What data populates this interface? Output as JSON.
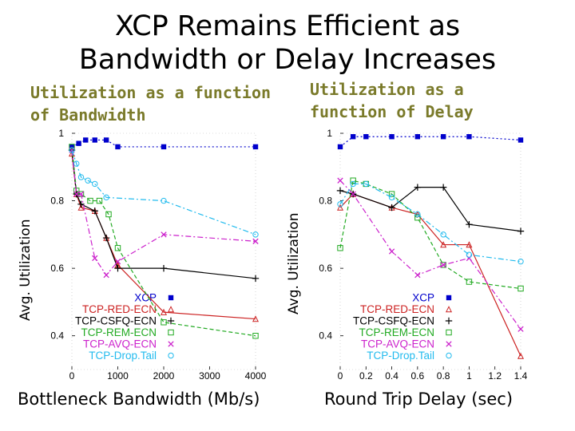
{
  "title_line1": "XCP Remains Efficient as",
  "title_line2": "Bandwidth or Delay Increases",
  "chart_data": [
    {
      "type": "line",
      "title": "Utilization as a function of Bandwidth",
      "xlabel": "Bottleneck Bandwidth (Mb/s)",
      "ylabel": "Avg. Utilization",
      "xlim": [
        0,
        4000
      ],
      "ylim": [
        0.3,
        1.0
      ],
      "xticks": [
        "0",
        "1000",
        "2000",
        "3000",
        "4000"
      ],
      "yticks": [
        "0.4",
        "0.6",
        "0.8",
        "1"
      ],
      "series": [
        {
          "name": "XCP",
          "color": "#0000cc",
          "marker": "square-filled",
          "style": "dotted",
          "x": [
            0,
            150,
            300,
            500,
            750,
            1000,
            2000,
            4000
          ],
          "y": [
            0.96,
            0.97,
            0.98,
            0.98,
            0.98,
            0.96,
            0.96,
            0.96
          ]
        },
        {
          "name": "TCP-RED-ECN",
          "color": "#cc2222",
          "marker": "triangle",
          "style": "solid",
          "x": [
            0,
            100,
            200,
            500,
            750,
            1000,
            2000,
            4000
          ],
          "y": [
            0.94,
            0.82,
            0.78,
            0.77,
            0.69,
            0.61,
            0.47,
            0.45
          ]
        },
        {
          "name": "TCP-CSFQ-ECN",
          "color": "#000000",
          "marker": "plus",
          "style": "solid",
          "x": [
            0,
            100,
            200,
            500,
            750,
            1000,
            2000,
            4000
          ],
          "y": [
            0.95,
            0.82,
            0.79,
            0.77,
            0.69,
            0.6,
            0.6,
            0.57
          ]
        },
        {
          "name": "TCP-REM-ECN",
          "color": "#22aa22",
          "marker": "square-open",
          "style": "dashed",
          "x": [
            0,
            100,
            200,
            400,
            600,
            800,
            1000,
            2000,
            4000
          ],
          "y": [
            0.96,
            0.83,
            0.82,
            0.8,
            0.8,
            0.76,
            0.66,
            0.44,
            0.4
          ]
        },
        {
          "name": "TCP-AVQ-ECN",
          "color": "#cc22cc",
          "marker": "cross",
          "style": "dashdot",
          "x": [
            0,
            100,
            200,
            500,
            750,
            1000,
            2000,
            4000
          ],
          "y": [
            0.95,
            0.82,
            0.82,
            0.63,
            0.58,
            0.62,
            0.7,
            0.68
          ]
        },
        {
          "name": "TCP-Drop.Tail",
          "color": "#22bbee",
          "marker": "circle",
          "style": "dashdot",
          "x": [
            0,
            100,
            200,
            350,
            500,
            750,
            2000,
            4000
          ],
          "y": [
            0.95,
            0.91,
            0.87,
            0.86,
            0.85,
            0.81,
            0.8,
            0.7
          ]
        }
      ]
    },
    {
      "type": "line",
      "title": "Utilization as a function of Delay",
      "xlabel": "Round Trip Delay (sec)",
      "ylabel": "Avg. Utilization",
      "xlim": [
        0,
        1.4
      ],
      "ylim": [
        0.3,
        1.0
      ],
      "xticks": [
        "0",
        "0.2",
        "0.4",
        "0.6",
        "0.8",
        "1",
        "1.2",
        "1.4"
      ],
      "yticks": [
        "0.4",
        "0.6",
        "0.8",
        "1"
      ],
      "series": [
        {
          "name": "XCP",
          "color": "#0000cc",
          "marker": "square-filled",
          "style": "dotted",
          "x": [
            0,
            0.1,
            0.2,
            0.4,
            0.6,
            0.8,
            1.0,
            1.4
          ],
          "y": [
            0.96,
            0.99,
            0.99,
            0.99,
            0.99,
            0.99,
            0.99,
            0.98
          ]
        },
        {
          "name": "TCP-RED-ECN",
          "color": "#cc2222",
          "marker": "triangle",
          "style": "solid",
          "x": [
            0,
            0.1,
            0.4,
            0.6,
            0.8,
            1.0,
            1.4
          ],
          "y": [
            0.78,
            0.82,
            0.78,
            0.76,
            0.67,
            0.67,
            0.34
          ]
        },
        {
          "name": "TCP-CSFQ-ECN",
          "color": "#000000",
          "marker": "plus",
          "style": "solid",
          "x": [
            0,
            0.1,
            0.4,
            0.6,
            0.8,
            1.0,
            1.4
          ],
          "y": [
            0.83,
            0.82,
            0.78,
            0.84,
            0.84,
            0.73,
            0.71
          ]
        },
        {
          "name": "TCP-REM-ECN",
          "color": "#22aa22",
          "marker": "square-open",
          "style": "dashed",
          "x": [
            0,
            0.1,
            0.2,
            0.4,
            0.6,
            0.8,
            1.0,
            1.4
          ],
          "y": [
            0.66,
            0.86,
            0.85,
            0.82,
            0.75,
            0.61,
            0.56,
            0.54
          ]
        },
        {
          "name": "TCP-AVQ-ECN",
          "color": "#cc22cc",
          "marker": "cross",
          "style": "dashdot",
          "x": [
            0,
            0.1,
            0.4,
            0.6,
            0.8,
            1.0,
            1.4
          ],
          "y": [
            0.86,
            0.82,
            0.65,
            0.58,
            0.61,
            0.63,
            0.42
          ]
        },
        {
          "name": "TCP-Drop.Tail",
          "color": "#22bbee",
          "marker": "circle",
          "style": "dashdot",
          "x": [
            0,
            0.1,
            0.2,
            0.4,
            0.6,
            0.8,
            1.0,
            1.4
          ],
          "y": [
            0.79,
            0.85,
            0.85,
            0.81,
            0.76,
            0.7,
            0.64,
            0.62
          ]
        }
      ]
    }
  ]
}
